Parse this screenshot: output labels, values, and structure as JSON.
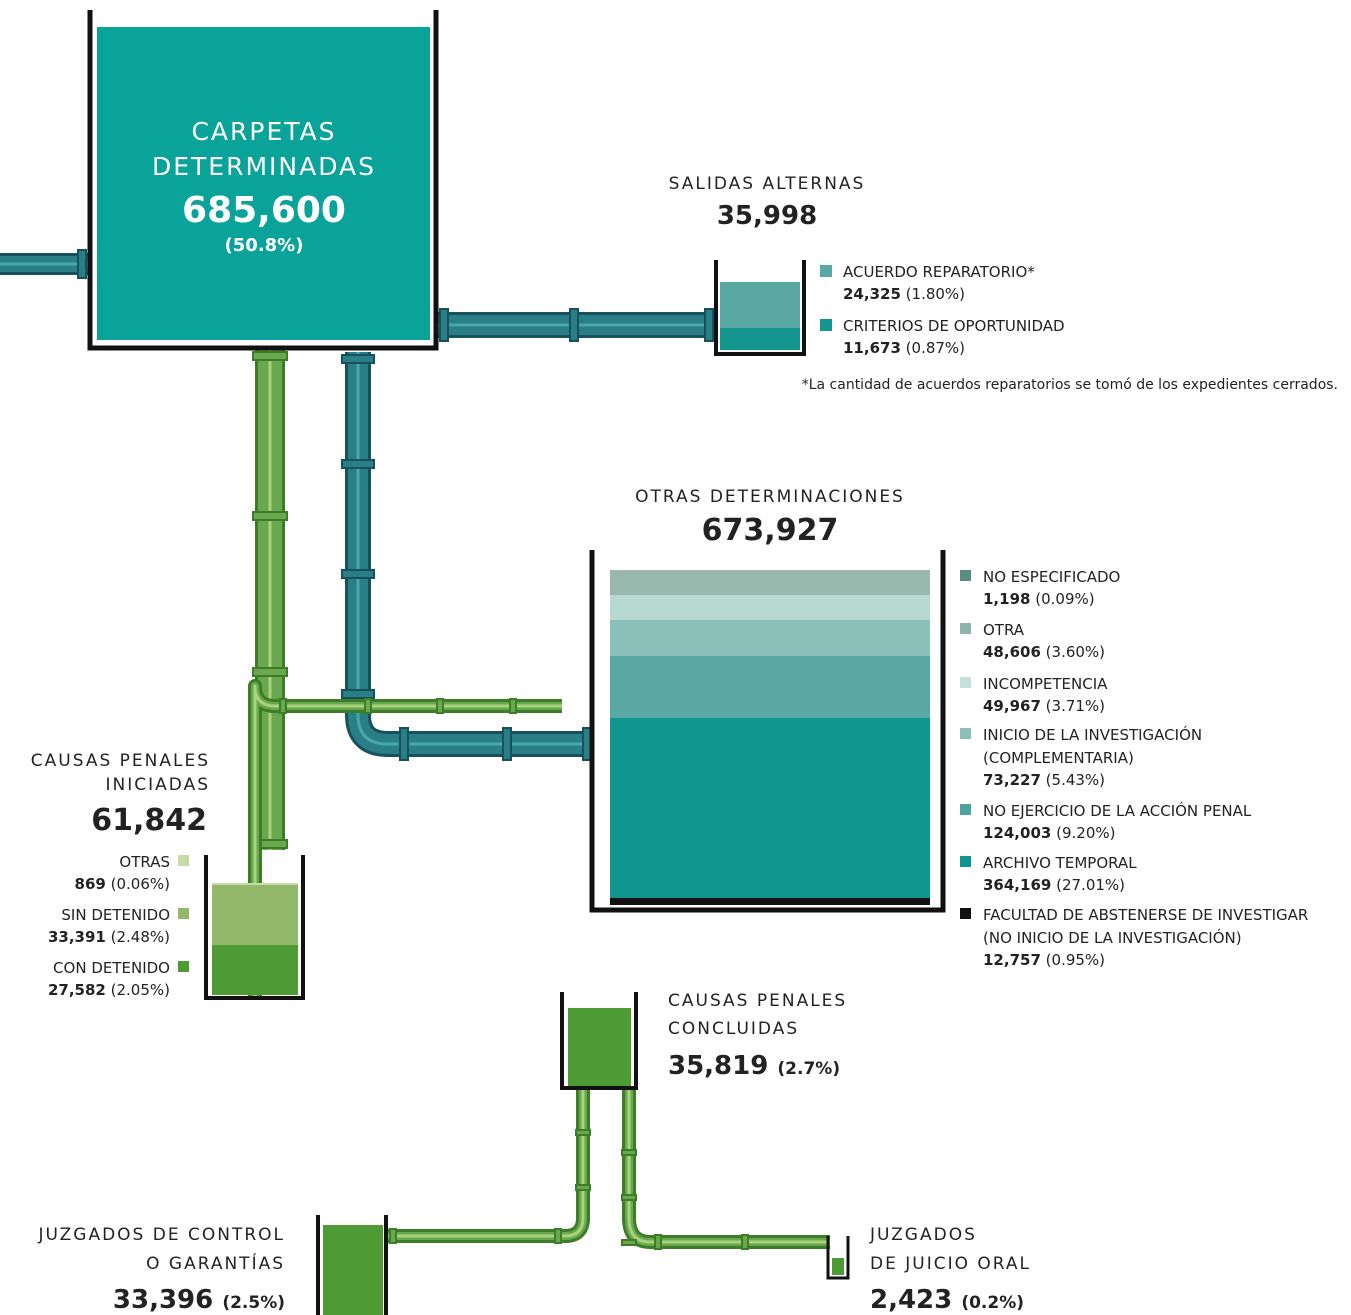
{
  "carpetas": {
    "title": [
      "CARPETAS",
      "DETERMINADAS"
    ],
    "value": "685,600",
    "pct": "(50.8%)"
  },
  "salidas": {
    "title": "SALIDAS ALTERNAS",
    "value": "35,998",
    "items": [
      {
        "label": "ACUERDO REPARATORIO*",
        "value": "24,325",
        "pct": "(1.80%)"
      },
      {
        "label": "CRITERIOS DE OPORTUNIDAD",
        "value": "11,673",
        "pct": "(0.87%)"
      }
    ],
    "note": "*La cantidad de acuerdos reparatorios se tomó de los expedientes cerrados."
  },
  "otras": {
    "title": "OTRAS DETERMINACIONES",
    "value": "673,927",
    "items": [
      {
        "label": [
          "NO ESPECIFICADO"
        ],
        "value": "1,198",
        "pct": "(0.09%)"
      },
      {
        "label": [
          "OTRA"
        ],
        "value": "48,606",
        "pct": "(3.60%)"
      },
      {
        "label": [
          "INCOMPETENCIA"
        ],
        "value": "49,967",
        "pct": "(3.71%)"
      },
      {
        "label": [
          "INICIO DE LA INVESTIGACIÓN",
          "(COMPLEMENTARIA)"
        ],
        "value": "73,227",
        "pct": "(5.43%)"
      },
      {
        "label": [
          "NO EJERCICIO DE LA ACCIÓN PENAL"
        ],
        "value": "124,003",
        "pct": "(9.20%)"
      },
      {
        "label": [
          "ARCHIVO TEMPORAL"
        ],
        "value": "364,169",
        "pct": "(27.01%)"
      },
      {
        "label": [
          "FACULTAD DE ABSTENERSE DE INVESTIGAR",
          "(NO INICIO DE LA INVESTIGACIÓN)"
        ],
        "value": "12,757",
        "pct": "(0.95%)"
      }
    ]
  },
  "iniciadas": {
    "title": [
      "CAUSAS PENALES",
      "INICIADAS"
    ],
    "value": "61,842",
    "items": [
      {
        "label": "OTRAS",
        "value": "869",
        "pct": "(0.06%)"
      },
      {
        "label": "SIN DETENIDO",
        "value": "33,391",
        "pct": "(2.48%)"
      },
      {
        "label": "CON DETENIDO",
        "value": "27,582",
        "pct": "(2.05%)"
      }
    ]
  },
  "concluidas": {
    "title": [
      "CAUSAS PENALES",
      "CONCLUIDAS"
    ],
    "value": "35,819",
    "pct": "(2.7%)"
  },
  "control": {
    "title": [
      "JUZGADOS DE CONTROL",
      "O GARANTÍAS"
    ],
    "value": "33,396",
    "pct": "(2.5%)"
  },
  "oral": {
    "title": [
      "JUZGADOS",
      "DE JUICIO ORAL"
    ],
    "value": "2,423",
    "pct": "(0.2%)"
  }
}
